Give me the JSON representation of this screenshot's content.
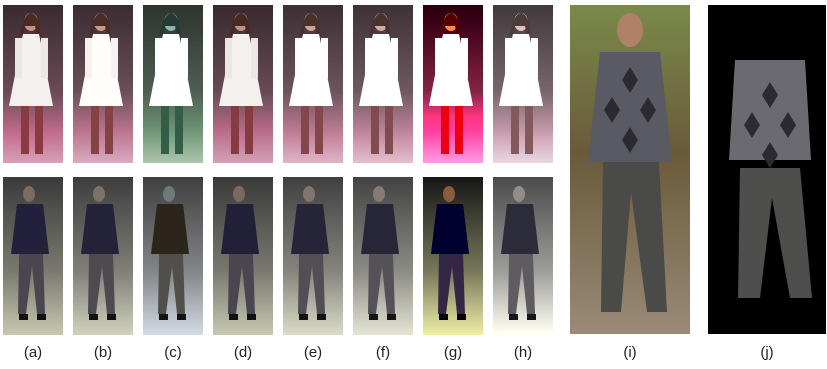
{
  "panels": [
    {
      "label": "(a)"
    },
    {
      "label": "(b)"
    },
    {
      "label": "(c)"
    },
    {
      "label": "(d)"
    },
    {
      "label": "(e)"
    },
    {
      "label": "(f)"
    },
    {
      "label": "(g)"
    },
    {
      "label": "(h)"
    },
    {
      "label": "(i)"
    },
    {
      "label": "(j)"
    }
  ]
}
